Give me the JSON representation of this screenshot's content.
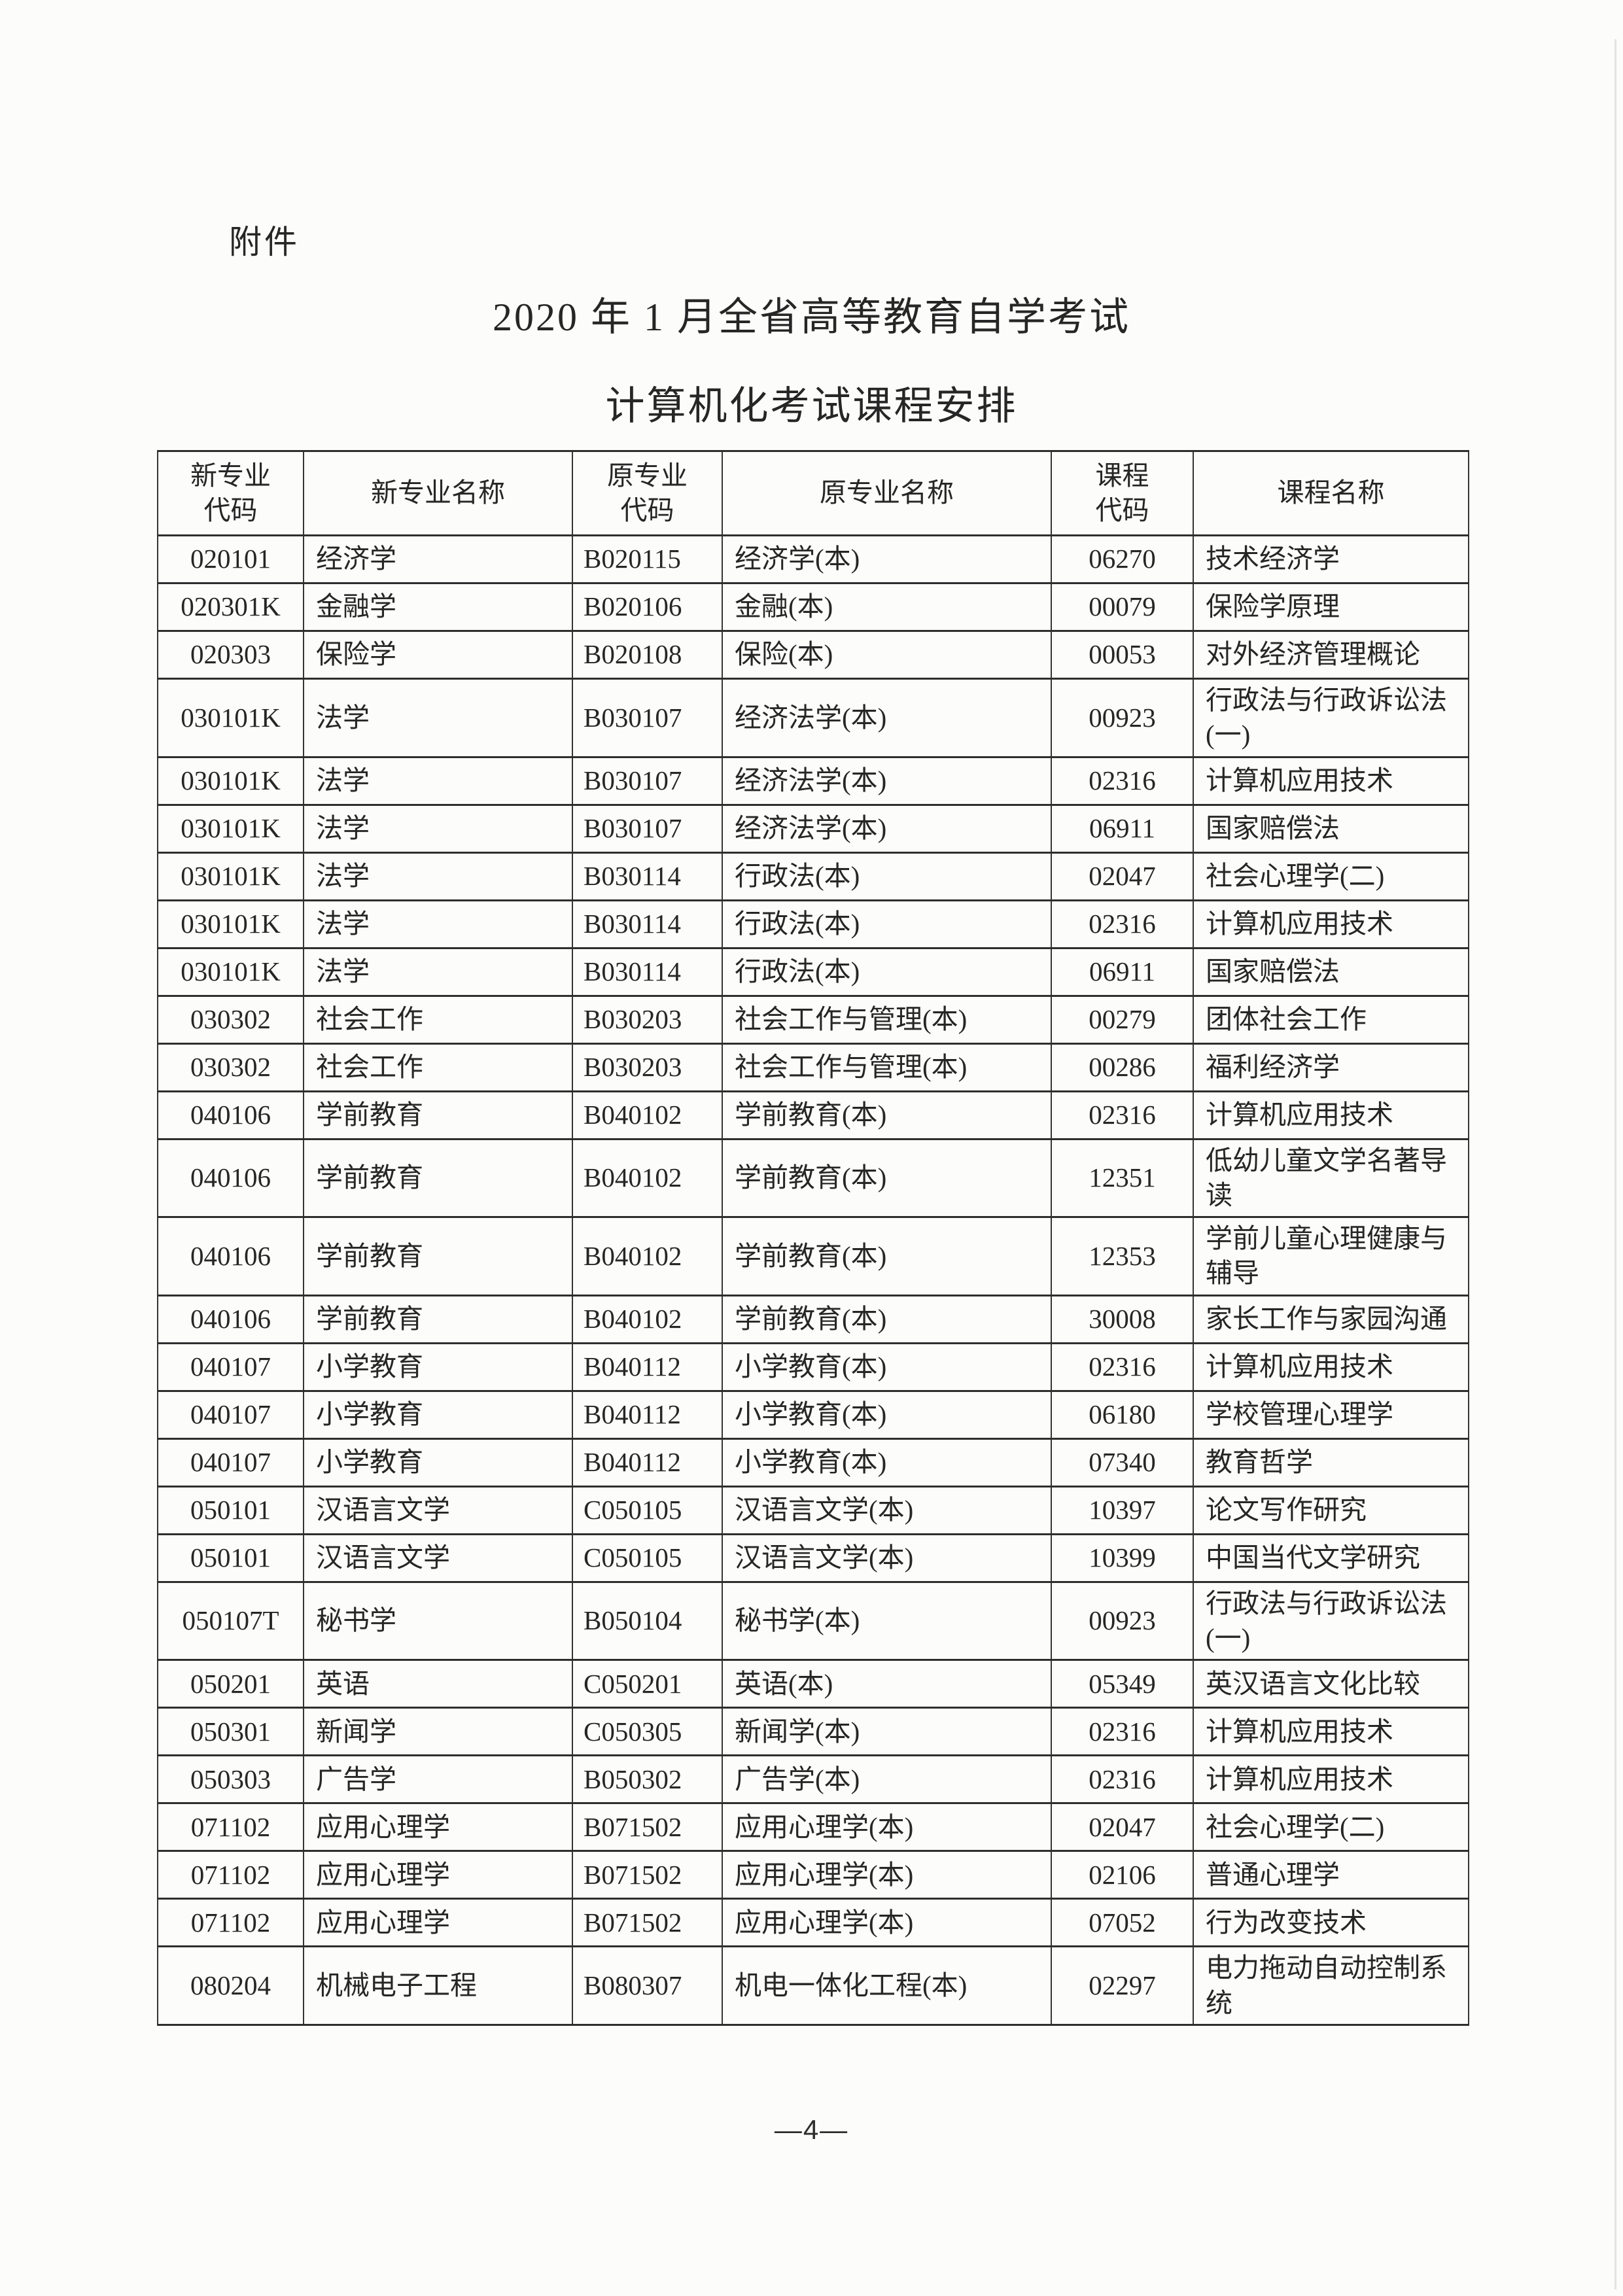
{
  "page": {
    "attachment_label": "附件",
    "title_line1": "2020 年 1 月全省高等教育自学考试",
    "title_line2": "计算机化考试课程安排",
    "page_number": "—4—"
  },
  "colors": {
    "text": "#262626",
    "table_border": "#2e2e2e",
    "page_background": "#fcfcfa"
  },
  "table": {
    "headers": [
      [
        "新专业",
        "代码"
      ],
      [
        "新专业名称"
      ],
      [
        "原专业",
        "代码"
      ],
      [
        "原专业名称"
      ],
      [
        "课程",
        "代码"
      ],
      [
        "课程名称"
      ]
    ],
    "rows": [
      {
        "new_code": "020101",
        "new_major": "经济学",
        "old_code": "B020115",
        "old_major": "经济学(本)",
        "course_code": "06270",
        "course_name": "技术经济学"
      },
      {
        "new_code": "020301K",
        "new_major": "金融学",
        "old_code": "B020106",
        "old_major": "金融(本)",
        "course_code": "00079",
        "course_name": "保险学原理"
      },
      {
        "new_code": "020303",
        "new_major": "保险学",
        "old_code": "B020108",
        "old_major": "保险(本)",
        "course_code": "00053",
        "course_name": "对外经济管理概论"
      },
      {
        "new_code": "030101K",
        "new_major": "法学",
        "old_code": "B030107",
        "old_major": "经济法学(本)",
        "course_code": "00923",
        "course_name": "行政法与行政诉讼法(一)"
      },
      {
        "new_code": "030101K",
        "new_major": "法学",
        "old_code": "B030107",
        "old_major": "经济法学(本)",
        "course_code": "02316",
        "course_name": "计算机应用技术"
      },
      {
        "new_code": "030101K",
        "new_major": "法学",
        "old_code": "B030107",
        "old_major": "经济法学(本)",
        "course_code": "06911",
        "course_name": "国家赔偿法"
      },
      {
        "new_code": "030101K",
        "new_major": "法学",
        "old_code": "B030114",
        "old_major": "行政法(本)",
        "course_code": "02047",
        "course_name": "社会心理学(二)"
      },
      {
        "new_code": "030101K",
        "new_major": "法学",
        "old_code": "B030114",
        "old_major": "行政法(本)",
        "course_code": "02316",
        "course_name": "计算机应用技术"
      },
      {
        "new_code": "030101K",
        "new_major": "法学",
        "old_code": "B030114",
        "old_major": "行政法(本)",
        "course_code": "06911",
        "course_name": "国家赔偿法"
      },
      {
        "new_code": "030302",
        "new_major": "社会工作",
        "old_code": "B030203",
        "old_major": "社会工作与管理(本)",
        "course_code": "00279",
        "course_name": "团体社会工作"
      },
      {
        "new_code": "030302",
        "new_major": "社会工作",
        "old_code": "B030203",
        "old_major": "社会工作与管理(本)",
        "course_code": "00286",
        "course_name": "福利经济学"
      },
      {
        "new_code": "040106",
        "new_major": "学前教育",
        "old_code": "B040102",
        "old_major": "学前教育(本)",
        "course_code": "02316",
        "course_name": "计算机应用技术"
      },
      {
        "new_code": "040106",
        "new_major": "学前教育",
        "old_code": "B040102",
        "old_major": "学前教育(本)",
        "course_code": "12351",
        "course_name": "低幼儿童文学名著导读"
      },
      {
        "new_code": "040106",
        "new_major": "学前教育",
        "old_code": "B040102",
        "old_major": "学前教育(本)",
        "course_code": "12353",
        "course_name": "学前儿童心理健康与辅导"
      },
      {
        "new_code": "040106",
        "new_major": "学前教育",
        "old_code": "B040102",
        "old_major": "学前教育(本)",
        "course_code": "30008",
        "course_name": "家长工作与家园沟通"
      },
      {
        "new_code": "040107",
        "new_major": "小学教育",
        "old_code": "B040112",
        "old_major": "小学教育(本)",
        "course_code": "02316",
        "course_name": "计算机应用技术"
      },
      {
        "new_code": "040107",
        "new_major": "小学教育",
        "old_code": "B040112",
        "old_major": "小学教育(本)",
        "course_code": "06180",
        "course_name": "学校管理心理学"
      },
      {
        "new_code": "040107",
        "new_major": "小学教育",
        "old_code": "B040112",
        "old_major": "小学教育(本)",
        "course_code": "07340",
        "course_name": "教育哲学"
      },
      {
        "new_code": "050101",
        "new_major": "汉语言文学",
        "old_code": "C050105",
        "old_major": "汉语言文学(本)",
        "course_code": "10397",
        "course_name": "论文写作研究"
      },
      {
        "new_code": "050101",
        "new_major": "汉语言文学",
        "old_code": "C050105",
        "old_major": "汉语言文学(本)",
        "course_code": "10399",
        "course_name": "中国当代文学研究"
      },
      {
        "new_code": "050107T",
        "new_major": "秘书学",
        "old_code": "B050104",
        "old_major": "秘书学(本)",
        "course_code": "00923",
        "course_name": "行政法与行政诉讼法(一)"
      },
      {
        "new_code": "050201",
        "new_major": "英语",
        "old_code": "C050201",
        "old_major": "英语(本)",
        "course_code": "05349",
        "course_name": "英汉语言文化比较"
      },
      {
        "new_code": "050301",
        "new_major": "新闻学",
        "old_code": "C050305",
        "old_major": "新闻学(本)",
        "course_code": "02316",
        "course_name": "计算机应用技术"
      },
      {
        "new_code": "050303",
        "new_major": "广告学",
        "old_code": "B050302",
        "old_major": "广告学(本)",
        "course_code": "02316",
        "course_name": "计算机应用技术"
      },
      {
        "new_code": "071102",
        "new_major": "应用心理学",
        "old_code": "B071502",
        "old_major": "应用心理学(本)",
        "course_code": "02047",
        "course_name": "社会心理学(二)"
      },
      {
        "new_code": "071102",
        "new_major": "应用心理学",
        "old_code": "B071502",
        "old_major": "应用心理学(本)",
        "course_code": "02106",
        "course_name": "普通心理学"
      },
      {
        "new_code": "071102",
        "new_major": "应用心理学",
        "old_code": "B071502",
        "old_major": "应用心理学(本)",
        "course_code": "07052",
        "course_name": "行为改变技术"
      },
      {
        "new_code": "080204",
        "new_major": "机械电子工程",
        "old_code": "B080307",
        "old_major": "机电一体化工程(本)",
        "course_code": "02297",
        "course_name": "电力拖动自动控制系统"
      }
    ]
  }
}
